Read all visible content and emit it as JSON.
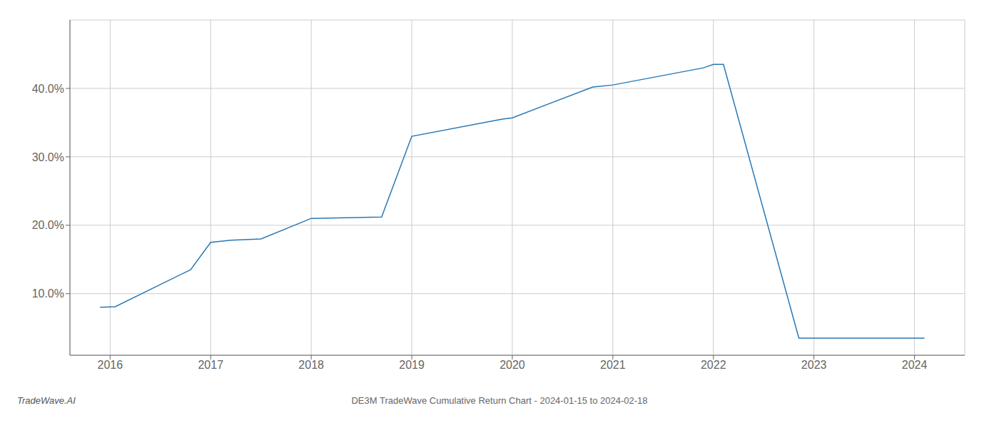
{
  "chart_data": {
    "type": "line",
    "title": "DE3M TradeWave Cumulative Return Chart - 2024-01-15 to 2024-02-18",
    "annotations": [
      "TradeWave.AI"
    ],
    "x": [
      2015.9,
      2016.05,
      2016.8,
      2017.0,
      2017.2,
      2017.5,
      2018.0,
      2018.7,
      2019.0,
      2019.9,
      2020.0,
      2020.8,
      2021.0,
      2021.9,
      2022.0,
      2022.1,
      2022.85,
      2022.92,
      2023.05,
      2024.1
    ],
    "values": [
      8.0,
      8.1,
      13.5,
      17.5,
      17.8,
      18.0,
      21.0,
      21.2,
      33.0,
      35.5,
      35.7,
      40.2,
      40.5,
      43.0,
      43.5,
      43.5,
      3.5,
      3.5,
      3.5,
      3.5
    ],
    "color": "#2878b5",
    "xlim": [
      2015.6,
      2024.5
    ],
    "ylim": [
      1.0,
      50.0
    ],
    "xticks": [
      2016,
      2017,
      2018,
      2019,
      2020,
      2021,
      2022,
      2023,
      2024
    ],
    "yticks": [
      {
        "value": 10.0,
        "label": "10.0%"
      },
      {
        "value": 20.0,
        "label": "20.0%"
      },
      {
        "value": 30.0,
        "label": "30.0%"
      },
      {
        "value": 40.0,
        "label": "40.0%"
      }
    ],
    "grid": true
  }
}
